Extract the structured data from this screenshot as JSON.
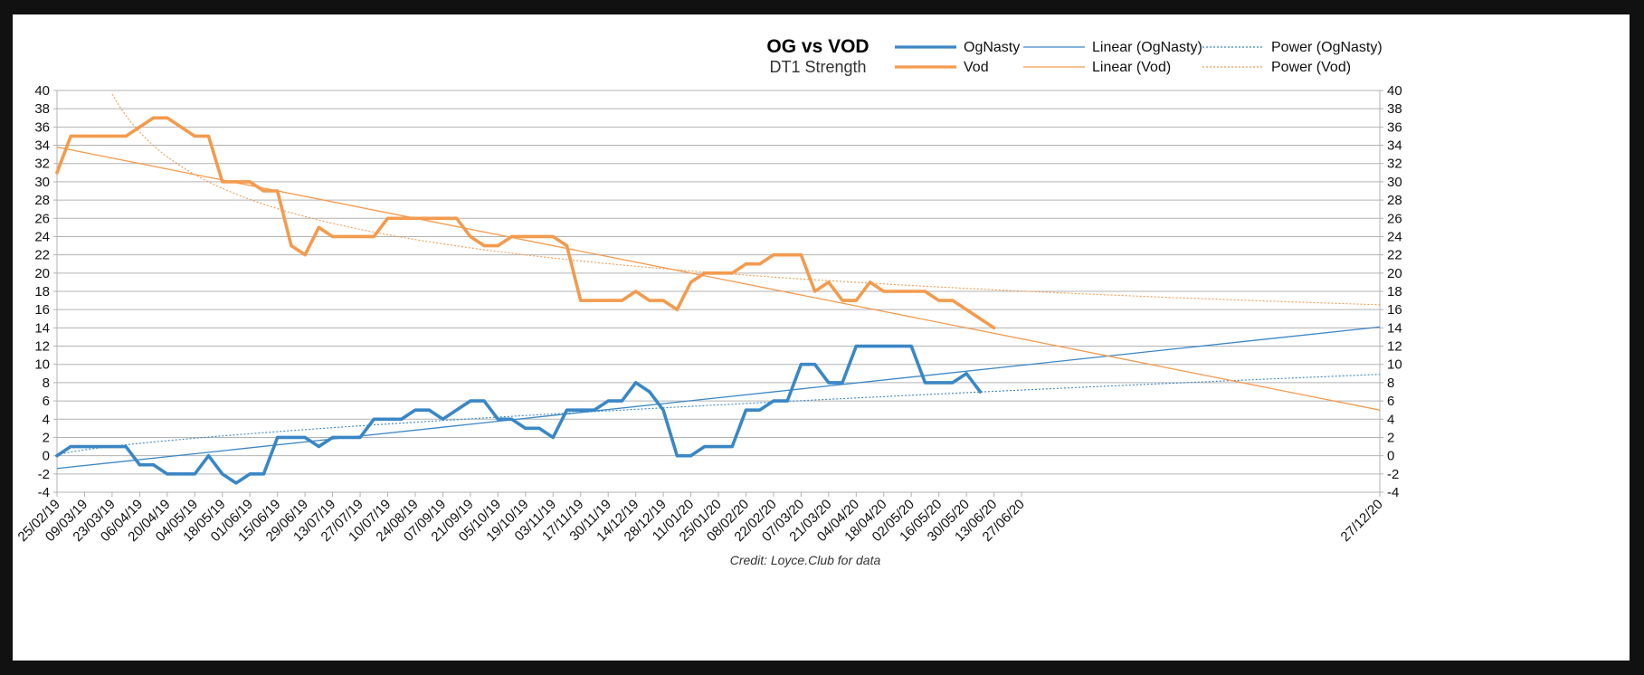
{
  "chart_data": {
    "type": "line",
    "title": "OG vs VOD",
    "subtitle": "DT1 Strength",
    "credit": "Credit: Loyce.Club for data",
    "ylim": [
      -4,
      40
    ],
    "ytick_step": 2,
    "x_tick_labels": [
      "25/02/19",
      "09/03/19",
      "23/03/19",
      "06/04/19",
      "20/04/19",
      "04/05/19",
      "18/05/19",
      "01/06/19",
      "15/06/19",
      "29/06/19",
      "13/07/19",
      "27/07/19",
      "10/07/19",
      "24/08/19",
      "07/09/19",
      "21/09/19",
      "05/10/19",
      "19/10/19",
      "03/11/19",
      "17/11/19",
      "30/11/19",
      "14/12/19",
      "28/12/19",
      "11/01/20",
      "25/01/20",
      "08/02/20",
      "22/02/20",
      "07/03/20",
      "21/03/20",
      "04/04/20",
      "18/04/20",
      "02/05/20",
      "16/05/20",
      "30/05/20",
      "13/06/20",
      "27/06/20",
      "27/12/20"
    ],
    "x_tick_positions": [
      0,
      2,
      4,
      6,
      8,
      10,
      12,
      14,
      16,
      18,
      20,
      22,
      24,
      26,
      28,
      30,
      32,
      34,
      36,
      38,
      40,
      42,
      44,
      46,
      48,
      50,
      52,
      54,
      56,
      58,
      60,
      62,
      64,
      66,
      68,
      70,
      96
    ],
    "x_max": 96,
    "series": [
      {
        "name": "OgNasty",
        "color": "#3a87c6",
        "values": [
          0,
          1,
          1,
          1,
          1,
          1,
          -1,
          -1,
          -2,
          -2,
          -2,
          0,
          -2,
          -3,
          -2,
          -2,
          2,
          2,
          2,
          1,
          2,
          2,
          2,
          4,
          4,
          4,
          5,
          5,
          4,
          5,
          6,
          6,
          4,
          4,
          3,
          3,
          2,
          5,
          5,
          5,
          6,
          6,
          8,
          7,
          5,
          0,
          0,
          1,
          1,
          1,
          5,
          5,
          6,
          6,
          10,
          10,
          8,
          8,
          12,
          12,
          12,
          12,
          12,
          8,
          8,
          8,
          9,
          7
        ]
      },
      {
        "name": "Vod",
        "color": "#f39b4e",
        "values": [
          31,
          35,
          35,
          35,
          35,
          35,
          36,
          37,
          37,
          36,
          35,
          35,
          30,
          30,
          30,
          29,
          29,
          23,
          22,
          25,
          24,
          24,
          24,
          24,
          26,
          26,
          26,
          26,
          26,
          26,
          24,
          23,
          23,
          24,
          24,
          24,
          24,
          23,
          17,
          17,
          17,
          17,
          18,
          17,
          17,
          16,
          19,
          20,
          20,
          20,
          21,
          21,
          22,
          22,
          22,
          18,
          19,
          17,
          17,
          19,
          18,
          18,
          18,
          18,
          17,
          17,
          16,
          15,
          14
        ]
      }
    ],
    "trendlines": [
      {
        "name": "Linear (OgNasty)",
        "kind": "linear",
        "color": "#3a87c6",
        "start": -1.4,
        "end": 14.1
      },
      {
        "name": "Power (OgNasty)",
        "kind": "power",
        "color": "#3a87c6",
        "coef": 0.4,
        "exponent": 0.68
      },
      {
        "name": "Linear (Vod)",
        "kind": "linear",
        "color": "#f39b4e",
        "start": 33.8,
        "end": 5.0
      },
      {
        "name": "Power (Vod)",
        "kind": "power",
        "color": "#f39b4e",
        "coef": 58.0,
        "exponent": -0.275
      }
    ],
    "legend": [
      {
        "label": "OgNasty",
        "color": "#3a87c6",
        "style": "thick"
      },
      {
        "label": "Linear (OgNasty)",
        "color": "#3a87c6",
        "style": "thin"
      },
      {
        "label": "Power (OgNasty)",
        "color": "#3a87c6",
        "style": "dotted"
      },
      {
        "label": "Vod",
        "color": "#f39b4e",
        "style": "thick"
      },
      {
        "label": "Linear (Vod)",
        "color": "#f39b4e",
        "style": "thin"
      },
      {
        "label": "Power (Vod)",
        "color": "#f39b4e",
        "style": "dotted"
      }
    ],
    "legend_position": "top-right",
    "grid": true
  }
}
